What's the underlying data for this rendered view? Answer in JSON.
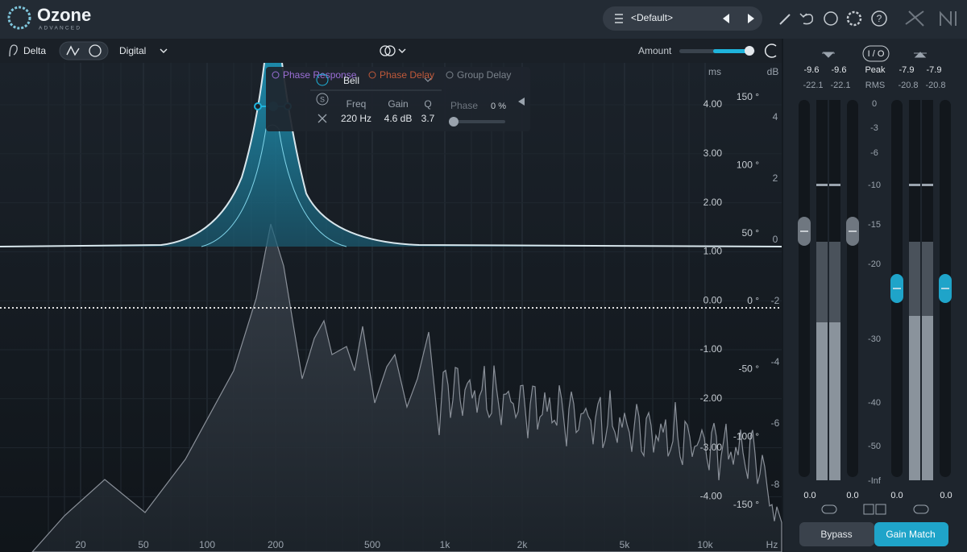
{
  "header": {
    "logo": "Ozone",
    "edition": "ADVANCED",
    "preset": "<Default>"
  },
  "toolbar": {
    "delta": "Delta",
    "mode": "Digital",
    "amount": "Amount"
  },
  "graph": {
    "ms_unit": "ms",
    "db_unit": "dB",
    "ms_ticks": [
      "4.00",
      "3.00",
      "2.00",
      "1.00",
      "0.00",
      "-1.00",
      "-2.00",
      "-3.00",
      "-4.00"
    ],
    "degree_ticks": [
      "150 °",
      "100 °",
      "50 °",
      "0 °",
      "-50 °",
      "-100 °",
      "-150 °"
    ],
    "db_ticks": [
      "4",
      "2",
      "0",
      "-2",
      "-4",
      "-6",
      "-8"
    ],
    "freq_ticks": [
      "20",
      "50",
      "100",
      "200",
      "500",
      "1k",
      "2k",
      "5k",
      "10k"
    ],
    "freq_unit": "Hz"
  },
  "popup": {
    "tabs": [
      "Phase Response",
      "Phase Delay",
      "Group Delay"
    ],
    "band_type": "Bell",
    "params": [
      {
        "label": "Freq",
        "value": "220 Hz"
      },
      {
        "label": "Gain",
        "value": "4.6 dB"
      },
      {
        "label": "Q",
        "value": "3.7"
      }
    ],
    "phase_label": "Phase",
    "phase_value": "0 %"
  },
  "meters": {
    "input": {
      "peak": [
        "-9.6",
        "-9.6"
      ],
      "rms": [
        "-22.1",
        "-22.1"
      ],
      "readout": [
        "0.0",
        "0.0"
      ]
    },
    "io": "I / O",
    "peak_label": "Peak",
    "rms_label": "RMS",
    "output": {
      "peak": [
        "-7.9",
        "-7.9"
      ],
      "rms": [
        "-20.8",
        "-20.8"
      ],
      "readout": [
        "0.0",
        "0.0"
      ]
    },
    "scale": [
      "0",
      "-3",
      "-6",
      "-10",
      "-15",
      "-20",
      "-30",
      "-40",
      "-50",
      "-Inf"
    ]
  },
  "footer": {
    "bypass": "Bypass",
    "gain_match": "Gain Match"
  }
}
